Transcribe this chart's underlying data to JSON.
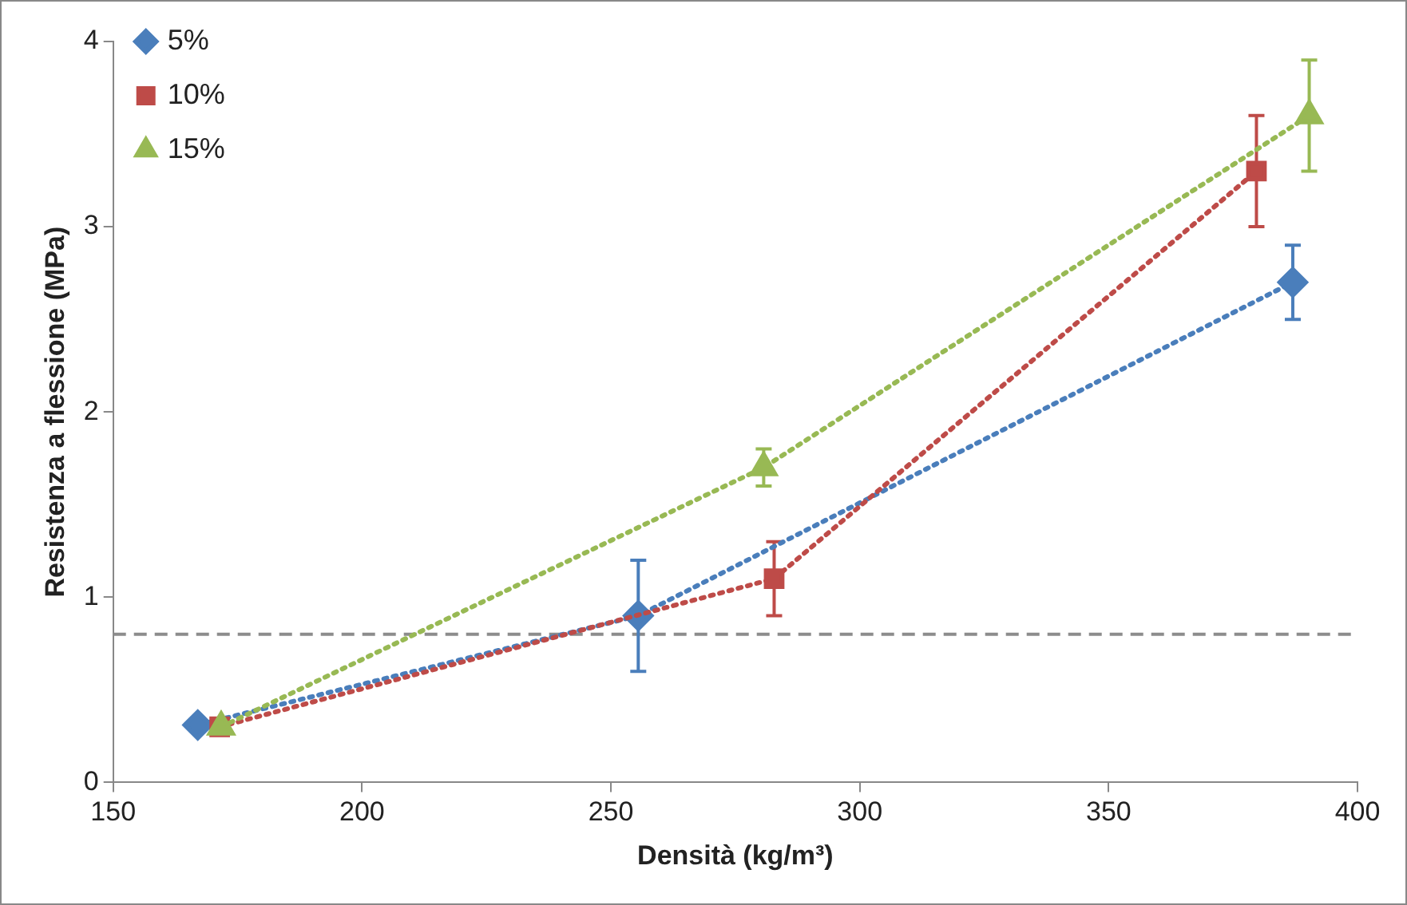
{
  "chart_data": {
    "type": "line",
    "xlabel": "Densità (kg/m³)",
    "ylabel": "Resistenza a flessione (MPa)",
    "xlim": [
      150,
      400
    ],
    "xticks": [
      150,
      200,
      250,
      300,
      350,
      400
    ],
    "ylim": [
      0,
      4
    ],
    "yticks": [
      0,
      1,
      2,
      3,
      4
    ],
    "grid": false,
    "legend": "top left",
    "line_style": "dotted",
    "series": [
      {
        "name": "5%",
        "color": "#4a7ebb",
        "marker": "diamond",
        "x": [
          167,
          255.5,
          387
        ],
        "values": [
          0.31,
          0.9,
          2.7
        ],
        "errors": [
          null,
          0.3,
          0.2
        ]
      },
      {
        "name": "10%",
        "color": "#be4b48",
        "marker": "square",
        "x": [
          171.4,
          282.8,
          379.7
        ],
        "values": [
          0.3,
          1.1,
          3.3
        ],
        "errors": [
          null,
          0.2,
          0.3
        ]
      },
      {
        "name": "15%",
        "color": "#98b954",
        "marker": "triangle",
        "x": [
          171.7,
          280.7,
          390.3
        ],
        "values": [
          0.3,
          1.7,
          3.6
        ],
        "errors": [
          null,
          0.1,
          0.3
        ]
      }
    ],
    "ref_lines": [
      {
        "axis": "y",
        "value": 0.8,
        "color": "#8c8c8c",
        "line_style": "dashed"
      }
    ]
  }
}
